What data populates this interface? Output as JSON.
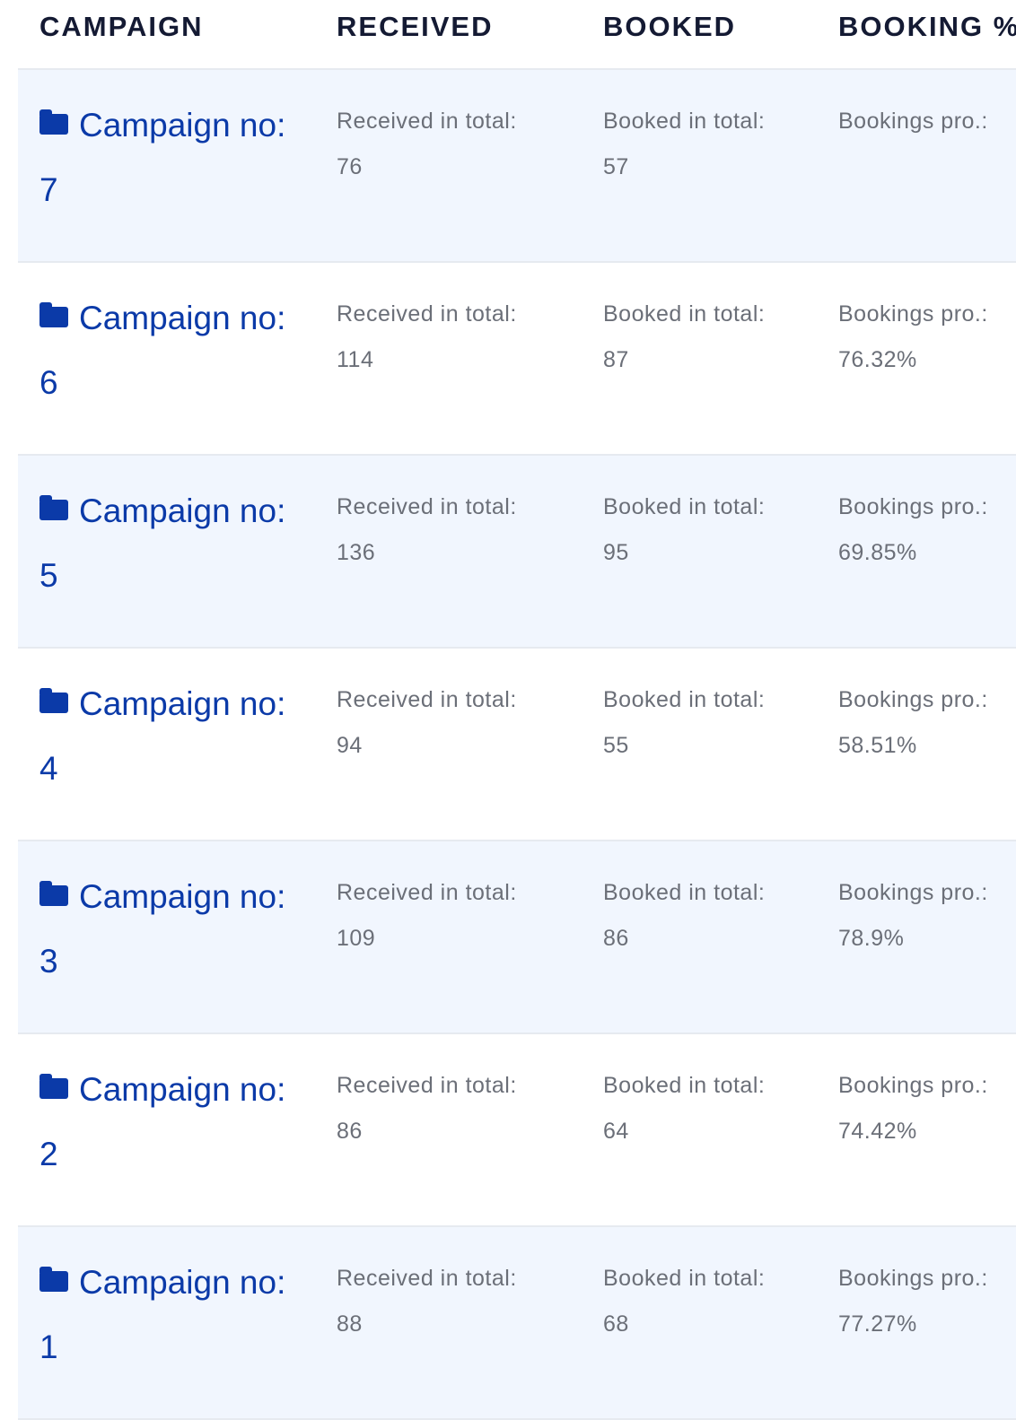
{
  "headers": {
    "campaign": "CAMPAIGN",
    "received": "RECEIVED",
    "booked": "BOOKED",
    "booking_pct": "BOOKING %"
  },
  "labels": {
    "campaign_prefix": "Campaign no:",
    "received": "Received in total:",
    "booked": "Booked in total:",
    "bookings": "Bookings pro.:"
  },
  "rows": [
    {
      "campaign_no": "7",
      "received": "76",
      "booked": "57",
      "bookings_pct": ""
    },
    {
      "campaign_no": "6",
      "received": "114",
      "booked": "87",
      "bookings_pct": "76.32%"
    },
    {
      "campaign_no": "5",
      "received": "136",
      "booked": "95",
      "bookings_pct": "69.85%"
    },
    {
      "campaign_no": "4",
      "received": "94",
      "booked": "55",
      "bookings_pct": "58.51%"
    },
    {
      "campaign_no": "3",
      "received": "109",
      "booked": "86",
      "bookings_pct": "78.9%"
    },
    {
      "campaign_no": "2",
      "received": "86",
      "booked": "64",
      "bookings_pct": "74.42%"
    },
    {
      "campaign_no": "1",
      "received": "88",
      "booked": "68",
      "bookings_pct": "77.27%"
    }
  ],
  "colors": {
    "link": "#0b3aa8",
    "header_text": "#141a33",
    "muted_text": "#6b6f78",
    "row_shade": "#f1f6fe",
    "divider": "#e6eaf0"
  },
  "icons": {
    "campaign": "folder-icon"
  }
}
